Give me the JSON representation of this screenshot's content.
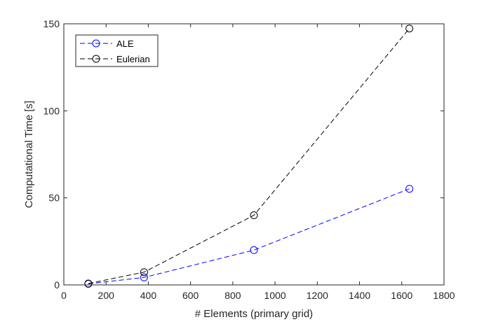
{
  "chart_data": {
    "type": "line",
    "title": "",
    "xlabel": "# Elements (primary grid)",
    "ylabel": "Computational Time [s]",
    "xlim": [
      0,
      1800
    ],
    "ylim": [
      0,
      150
    ],
    "xticks": [
      0,
      200,
      400,
      600,
      800,
      1000,
      1200,
      1400,
      1600,
      1800
    ],
    "yticks": [
      0,
      50,
      100,
      150
    ],
    "grid": false,
    "legend_position": "top-left",
    "series": [
      {
        "name": "ALE",
        "color": "#0000ff",
        "marker": "circle",
        "linestyle": "dashed",
        "x": [
          116,
          380,
          900,
          1636
        ],
        "y": [
          0.6,
          4.3,
          20,
          55.2
        ]
      },
      {
        "name": "Eulerian",
        "color": "#000000",
        "marker": "circle",
        "linestyle": "dashed",
        "x": [
          116,
          380,
          900,
          1636
        ],
        "y": [
          0.8,
          7.3,
          40,
          147.3
        ]
      }
    ]
  }
}
